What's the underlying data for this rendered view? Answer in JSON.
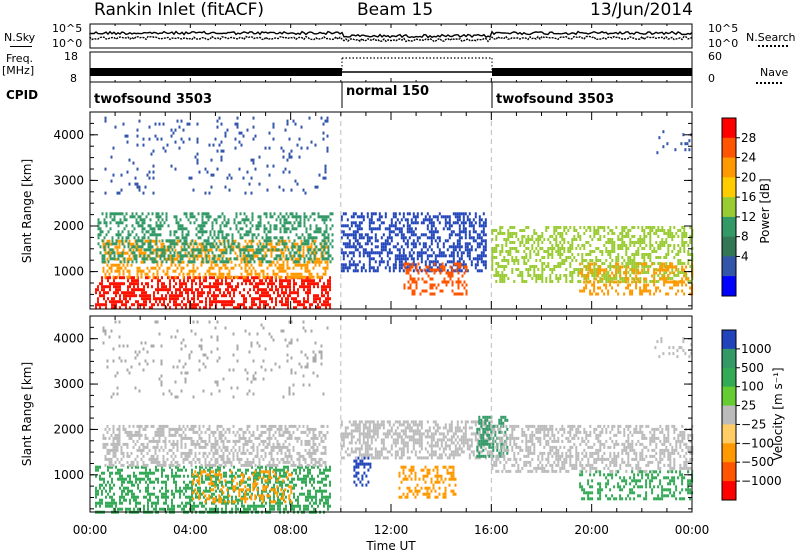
{
  "header": {
    "title": "Rankin Inlet (fitACF)",
    "beam": "Beam 15",
    "date": "13/Jun/2014"
  },
  "top_panels": {
    "nsky_label": "N.Sky",
    "nsearch_label": "N.Search",
    "noise_ticks_left": [
      "10^5",
      "10^0"
    ],
    "noise_ticks_right": [
      "10^5",
      "10^0"
    ],
    "freq_label": "Freq.",
    "freq_unit": "[MHz]",
    "freq_ticks": [
      "18",
      "8"
    ],
    "nave_label": "Nave",
    "nave_ticks": [
      "60",
      "0"
    ],
    "cpid_label": "CPID",
    "cpid_segments": [
      {
        "name": "twofsound 3503",
        "start": 0,
        "end": 10
      },
      {
        "name": "normal 150",
        "start": 10,
        "end": 16
      },
      {
        "name": "twofsound 3503",
        "start": 16,
        "end": 24
      }
    ]
  },
  "chart_data": [
    {
      "type": "heatmap",
      "title": "",
      "xlabel": "Time UT",
      "ylabel": "Slant Range [km]",
      "xlim": [
        0,
        24
      ],
      "ylim": [
        180,
        4500
      ],
      "x_ticks": [
        "00:00",
        "04:00",
        "08:00",
        "12:00",
        "16:00",
        "20:00",
        "00:00"
      ],
      "y_ticks": [
        "1000",
        "2000",
        "3000",
        "4000"
      ],
      "y_tick_values": [
        1000,
        2000,
        3000,
        4000
      ],
      "colorbar": {
        "label": "Power [dB]",
        "ticks": [
          "28",
          "24",
          "20",
          "16",
          "12",
          "8",
          "4"
        ],
        "colors": [
          "#ff0000",
          "#ff5500",
          "#ff9900",
          "#ffcc00",
          "#99cc33",
          "#339966",
          "#337755",
          "#3355aa",
          "#0000ff"
        ]
      },
      "scatter_bands": [
        {
          "t0": 0.2,
          "t1": 9.6,
          "r0": 200,
          "r1": 900,
          "color": "#ff1100",
          "density": 0.55
        },
        {
          "t0": 0.5,
          "t1": 9.5,
          "r0": 900,
          "r1": 1700,
          "color": "#ff9900",
          "density": 0.45
        },
        {
          "t0": 0.3,
          "t1": 9.7,
          "r0": 1200,
          "r1": 2300,
          "color": "#339966",
          "density": 0.4
        },
        {
          "t0": 10.0,
          "t1": 15.8,
          "r0": 1000,
          "r1": 2300,
          "color": "#2244bb",
          "density": 0.45
        },
        {
          "t0": 12.5,
          "t1": 15.0,
          "r0": 500,
          "r1": 1200,
          "color": "#ff5500",
          "density": 0.35
        },
        {
          "t0": 16.0,
          "t1": 24.0,
          "r0": 800,
          "r1": 2000,
          "color": "#99cc33",
          "density": 0.45
        },
        {
          "t0": 19.5,
          "t1": 24.0,
          "r0": 500,
          "r1": 1200,
          "color": "#ff9900",
          "density": 0.35
        },
        {
          "t0": 0.5,
          "t1": 9.5,
          "r0": 2700,
          "r1": 4400,
          "color": "#3355aa",
          "density": 0.06
        },
        {
          "t0": 22.5,
          "t1": 24.0,
          "r0": 3600,
          "r1": 4100,
          "color": "#3355aa",
          "density": 0.12
        }
      ]
    },
    {
      "type": "heatmap",
      "title": "",
      "xlabel": "Time UT",
      "ylabel": "Slant Range [km]",
      "xlim": [
        0,
        24
      ],
      "ylim": [
        180,
        4500
      ],
      "x_ticks": [
        "00:00",
        "04:00",
        "08:00",
        "12:00",
        "16:00",
        "20:00",
        "00:00"
      ],
      "y_ticks": [
        "1000",
        "2000",
        "3000",
        "4000"
      ],
      "y_tick_values": [
        1000,
        2000,
        3000,
        4000
      ],
      "colorbar": {
        "label": "Velocity [m s⁻¹]",
        "ticks": [
          "1000",
          "500",
          "100",
          "25",
          "−25",
          "−100",
          "−500",
          "−1000"
        ],
        "colors": [
          "#2244bb",
          "#339966",
          "#33aa55",
          "#66cc33",
          "#bbbbbb",
          "#ffcc66",
          "#ff9900",
          "#ff5500",
          "#ff0000"
        ]
      },
      "scatter_bands": [
        {
          "t0": 0.2,
          "t1": 9.6,
          "r0": 200,
          "r1": 1200,
          "color": "#33aa55",
          "density": 0.45
        },
        {
          "t0": 4.0,
          "t1": 8.0,
          "r0": 400,
          "r1": 1100,
          "color": "#ff9900",
          "density": 0.3
        },
        {
          "t0": 0.5,
          "t1": 9.5,
          "r0": 1200,
          "r1": 2100,
          "color": "#bbbbbb",
          "density": 0.45
        },
        {
          "t0": 10.0,
          "t1": 16.0,
          "r0": 1400,
          "r1": 2200,
          "color": "#bbbbbb",
          "density": 0.5
        },
        {
          "t0": 10.5,
          "t1": 11.2,
          "r0": 800,
          "r1": 1400,
          "color": "#2244bb",
          "density": 0.5
        },
        {
          "t0": 12.3,
          "t1": 14.6,
          "r0": 500,
          "r1": 1200,
          "color": "#ff9900",
          "density": 0.4
        },
        {
          "t0": 15.4,
          "t1": 16.6,
          "r0": 1400,
          "r1": 2300,
          "color": "#339966",
          "density": 0.5
        },
        {
          "t0": 16.0,
          "t1": 24.0,
          "r0": 1100,
          "r1": 2100,
          "color": "#bbbbbb",
          "density": 0.45
        },
        {
          "t0": 19.5,
          "t1": 24.0,
          "r0": 500,
          "r1": 1100,
          "color": "#33aa55",
          "density": 0.35
        },
        {
          "t0": 0.5,
          "t1": 9.5,
          "r0": 2700,
          "r1": 4400,
          "color": "#aaaaaa",
          "density": 0.06
        },
        {
          "t0": 22.5,
          "t1": 24.0,
          "r0": 3600,
          "r1": 4100,
          "color": "#bbbbbb",
          "density": 0.12
        }
      ]
    }
  ]
}
